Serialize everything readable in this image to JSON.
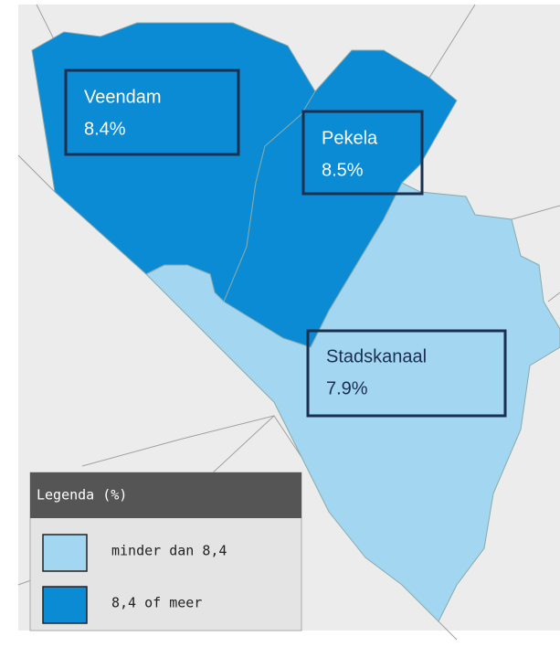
{
  "regions": [
    {
      "name": "Veendam",
      "value": "8.4%"
    },
    {
      "name": "Pekela",
      "value": "8.5%"
    },
    {
      "name": "Stadskanaal",
      "value": "7.9%"
    }
  ],
  "legend": {
    "title": "Legenda (%)",
    "items": [
      "minder dan 8,4",
      "8,4 of meer"
    ]
  }
}
